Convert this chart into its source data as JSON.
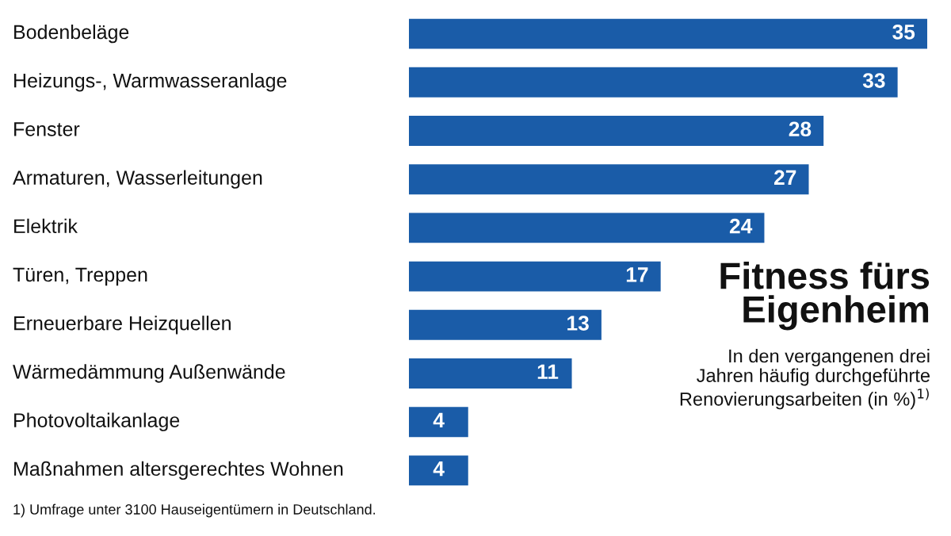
{
  "chart_data": {
    "type": "bar",
    "orientation": "horizontal",
    "title": "Fitness fürs Eigenheim",
    "subtitle": "In den vergangenen drei\nJahren häufig durchgeführte\nRenovierungsarbeiten (in %)$^{1)}$",
    "categories": [
      "Bodenbeläge",
      "Heizungs-, Warmwasseranlage",
      "Fenster",
      "Armaturen, Wasserleitungen",
      "Elektrik",
      "Türen, Treppen",
      "Erneuerbare Heizquellen",
      "Wärmedämmung Außenwände",
      "Photovoltaikanlage",
      "Maßnahmen altersgerechtes Wohnen"
    ],
    "values": [
      35,
      33,
      28,
      27,
      24,
      17,
      13,
      11,
      4,
      4
    ],
    "color": "#1a5ca8",
    "data_labels": true,
    "annotations": [
      "1) Umfrage unter 3100 Hauseigentümern in Deutschland."
    ]
  }
}
